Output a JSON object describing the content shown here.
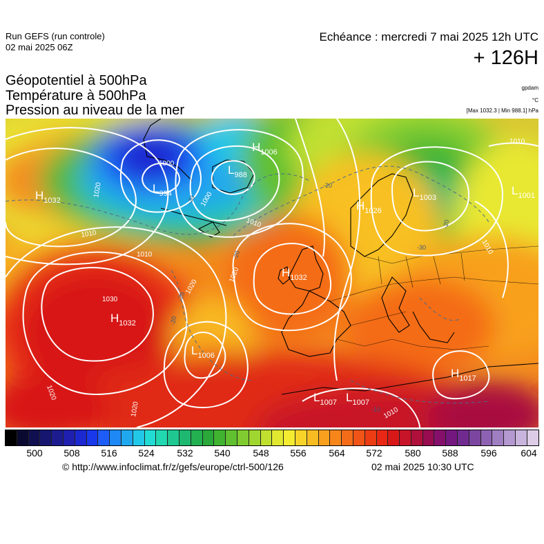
{
  "header": {
    "run_line1": "Run GEFS (run controle)",
    "run_line2": "02 mai 2025 06Z",
    "echeance": "Echéance : mercredi 7 mai 2025 12h UTC",
    "horizon": "+ 126H"
  },
  "parameters": {
    "line1": "Géopotentiel à 500hPa",
    "line2": "Température à 500hPa",
    "line3": "Pression au niveau de la mer"
  },
  "units": {
    "geopotential": "gpdam",
    "temperature": "°C",
    "pressure": "[Max 1032.3 | Min 988.1] hPa"
  },
  "map": {
    "pressure_centers": [
      {
        "type": "H",
        "value": "1032",
        "label_id": "azores"
      },
      {
        "type": "H",
        "value": "1006",
        "label_id": "iceland-n"
      },
      {
        "type": "L",
        "value": "988",
        "label_id": "iceland"
      },
      {
        "type": "L",
        "value": "994",
        "label_id": "greenland"
      },
      {
        "type": "H",
        "value": "1032",
        "label_id": "atlantic-w"
      },
      {
        "type": "H",
        "value": "1032",
        "label_id": "uk"
      },
      {
        "type": "L",
        "value": "1006",
        "label_id": "iberia-w"
      },
      {
        "type": "H",
        "value": "1017",
        "label_id": "levant"
      },
      {
        "type": "L",
        "value": "1007",
        "label_id": "sahara-1"
      },
      {
        "type": "L",
        "value": "1007",
        "label_id": "sahara-2"
      },
      {
        "type": "L",
        "value": "1003",
        "label_id": "scandinavia"
      },
      {
        "type": "L",
        "value": "1001",
        "label_id": "russia"
      },
      {
        "type": "H",
        "value": "1026",
        "label_id": "norway"
      }
    ],
    "isobar_labels": [
      "1020",
      "1010",
      "1000",
      "1010",
      "1020",
      "1030",
      "1020",
      "1020",
      "1010",
      "1010",
      "1010",
      "1010",
      "1000",
      "1020"
    ],
    "temperature_labels": [
      "-30",
      "-20",
      "-20",
      "-20",
      "-20",
      "-30",
      "-20",
      "-10"
    ]
  },
  "color_scale": {
    "colors": [
      "#000000",
      "#0a0a30",
      "#101050",
      "#161670",
      "#1c1c90",
      "#2020b0",
      "#1c28d0",
      "#1838ea",
      "#1e5cf8",
      "#1e88f4",
      "#20a8ee",
      "#22c8e8",
      "#22dcd4",
      "#22d8b0",
      "#1ec890",
      "#1eb870",
      "#22b050",
      "#2aa83a",
      "#40b430",
      "#60c030",
      "#80cc30",
      "#a0d630",
      "#c0e030",
      "#e0e830",
      "#f4ec30",
      "#f8d428",
      "#f8bc22",
      "#f8a01e",
      "#f6861a",
      "#f46c18",
      "#f05416",
      "#ec3c14",
      "#e82814",
      "#d81818",
      "#c81428",
      "#b0103c",
      "#980c50",
      "#84106c",
      "#741880",
      "#702a90",
      "#7c46a0",
      "#8e62b2",
      "#a07ec2",
      "#b498d0",
      "#c8b4dc",
      "#dccce6"
    ],
    "tick_labels": [
      "500",
      "508",
      "516",
      "524",
      "532",
      "540",
      "548",
      "556",
      "564",
      "572",
      "580",
      "588",
      "596",
      "604"
    ]
  },
  "footer": {
    "source": "© http://www.infoclimat.fr/z/gefs/europe/ctrl-500/126",
    "generated": "02 mai 2025 10:30 UTC"
  }
}
